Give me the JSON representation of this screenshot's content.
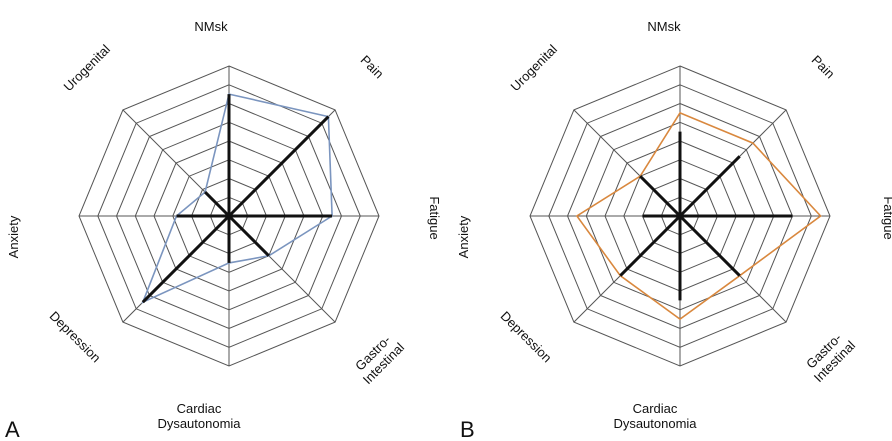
{
  "chart_data": [
    {
      "type": "radar",
      "panel_label": "A",
      "axes": [
        "NMsk",
        "Pain",
        "Fatigue",
        "Gastro-Intestinal",
        "Cardiac Dysautonomia",
        "Depression",
        "Anxiety",
        "Urogenital"
      ],
      "axis_label_lines": [
        [
          "NMsk"
        ],
        [
          "Pain"
        ],
        [
          "Fatigue"
        ],
        [
          "Gastro-",
          "Intestinal"
        ],
        [
          "Cardiac",
          "Dysautonomia"
        ],
        [
          "Depression"
        ],
        [
          "Anxiety"
        ],
        [
          "Urogenital"
        ]
      ],
      "rings": 8,
      "range": [
        0,
        8
      ],
      "series": [
        {
          "values": [
            6.5,
            7.5,
            5.5,
            3.0,
            2.5,
            6.5,
            2.8,
            1.8
          ],
          "color": "#7b95bf"
        },
        {
          "values": [
            6.5,
            7.5,
            5.5,
            3.0,
            2.5,
            6.5,
            2.8,
            1.8
          ],
          "color": "#111111",
          "style": "spokes"
        }
      ]
    },
    {
      "type": "radar",
      "panel_label": "B",
      "axes": [
        "NMsk",
        "Pain",
        "Fatigue",
        "Gastro-Intestinal",
        "Cardiac Dysautonomia",
        "Depression",
        "Anxiety",
        "Urogenital"
      ],
      "axis_label_lines": [
        [
          "NMsk"
        ],
        [
          "Pain"
        ],
        [
          "Fatigue"
        ],
        [
          "Gastro-",
          "Intestinal"
        ],
        [
          "Cardiac",
          "Dysautonomia"
        ],
        [
          "Depression"
        ],
        [
          "Anxiety"
        ],
        [
          "Urogenital"
        ]
      ],
      "rings": 8,
      "range": [
        0,
        8
      ],
      "series": [
        {
          "values": [
            5.5,
            5.5,
            7.5,
            4.5,
            5.5,
            4.5,
            5.5,
            3.0
          ],
          "color": "#d9883e"
        },
        {
          "values": [
            4.5,
            4.5,
            6.0,
            4.5,
            4.5,
            4.5,
            2.0,
            3.0
          ],
          "color": "#111111",
          "style": "spokes"
        }
      ]
    }
  ]
}
